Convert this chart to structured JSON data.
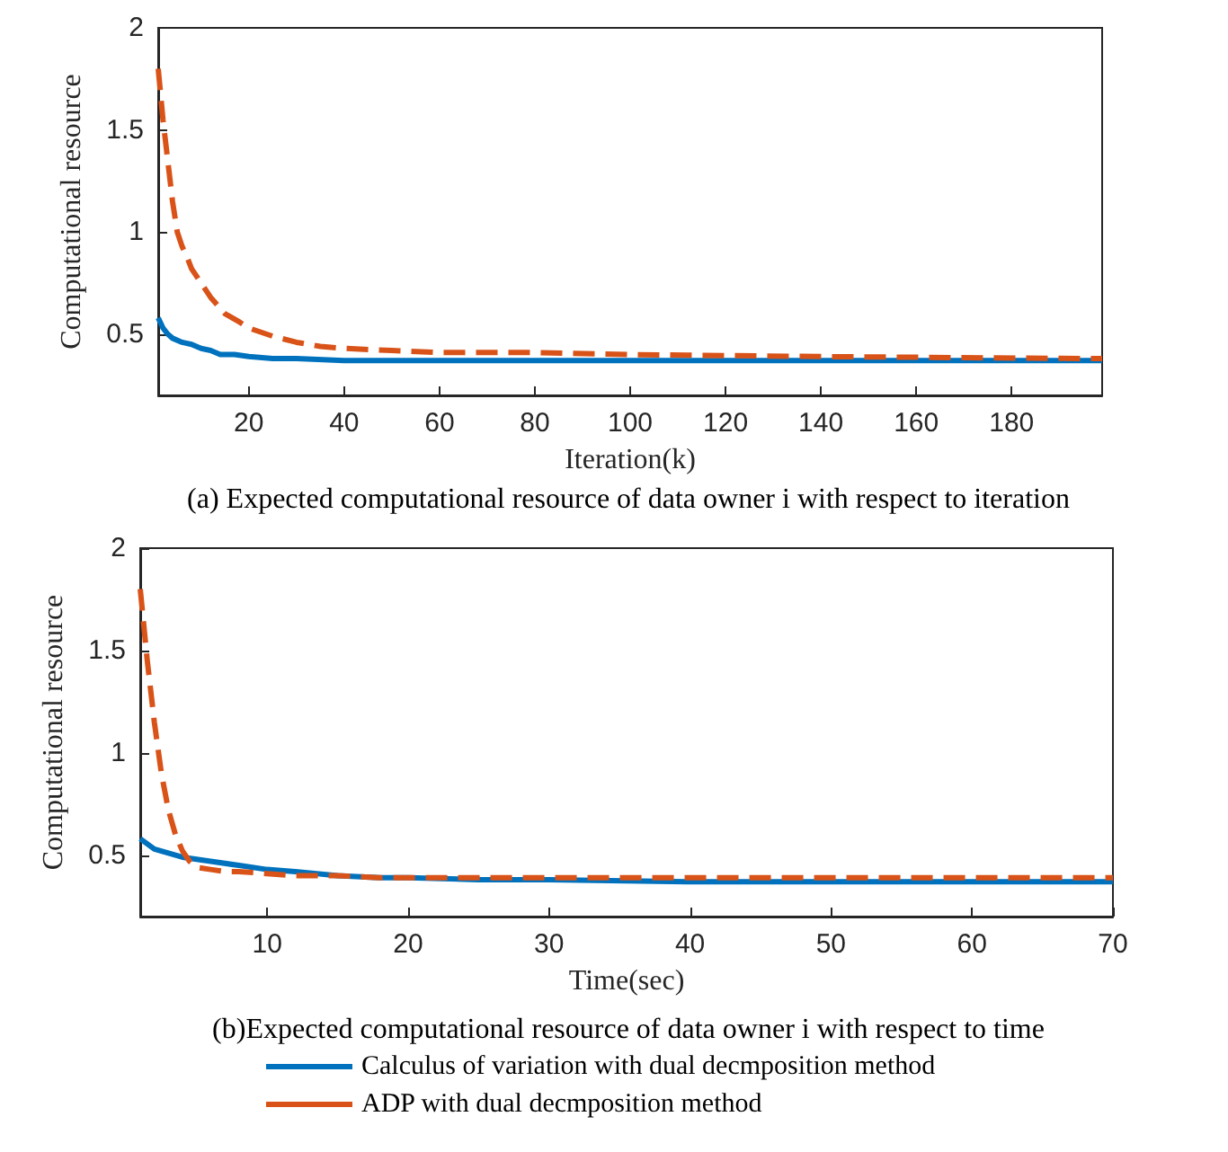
{
  "chart_data": [
    {
      "type": "line",
      "xlabel": "Iteration(k)",
      "ylabel": "Computational resource",
      "annotations": [
        "(a) Expected computational resource of data owner i with respect to iteration"
      ],
      "xlim": [
        1,
        199
      ],
      "xticks": [
        20,
        40,
        60,
        80,
        100,
        120,
        140,
        160,
        180
      ],
      "ylim": [
        0.2,
        2
      ],
      "yticks": [
        0.5,
        1,
        1.5,
        2
      ],
      "grid": false,
      "legend": false,
      "marker": "none",
      "series": [
        {
          "color": "#0072bd",
          "line_style": "solid",
          "x": [
            1,
            2,
            3,
            4,
            6,
            8,
            10,
            12,
            14,
            17,
            20,
            25,
            30,
            40,
            50,
            80,
            120,
            160,
            199
          ],
          "values": [
            0.58,
            0.53,
            0.5,
            0.48,
            0.46,
            0.45,
            0.43,
            0.42,
            0.4,
            0.4,
            0.39,
            0.38,
            0.38,
            0.37,
            0.37,
            0.37,
            0.37,
            0.37,
            0.37
          ]
        },
        {
          "color": "#d95319",
          "line_style": "dashed",
          "x": [
            1,
            2,
            3,
            4,
            5,
            6,
            7,
            8,
            10,
            12,
            15,
            18,
            20,
            25,
            30,
            35,
            40,
            50,
            60,
            80,
            100,
            140,
            199
          ],
          "values": [
            1.8,
            1.55,
            1.35,
            1.15,
            1.0,
            0.93,
            0.88,
            0.82,
            0.75,
            0.68,
            0.6,
            0.56,
            0.53,
            0.49,
            0.46,
            0.44,
            0.43,
            0.42,
            0.41,
            0.41,
            0.4,
            0.39,
            0.38
          ]
        }
      ]
    },
    {
      "type": "line",
      "xlabel": "Time(sec)",
      "ylabel": "Computational resource",
      "annotations": [
        "(b)Expected computational resource of data owner i with respect to time"
      ],
      "xlim": [
        1,
        70
      ],
      "xticks": [
        10,
        20,
        30,
        40,
        50,
        60,
        70
      ],
      "ylim": [
        0.2,
        2
      ],
      "yticks": [
        0.5,
        1,
        1.5,
        2
      ],
      "grid": false,
      "legend": "bottom",
      "marker": "none",
      "series": [
        {
          "name": "Calculus of variation with dual decmposition method",
          "color": "#0072bd",
          "line_style": "solid",
          "x": [
            1,
            2,
            3,
            4,
            5,
            6,
            8,
            10,
            12,
            15,
            18,
            20,
            25,
            30,
            40,
            50,
            60,
            70
          ],
          "values": [
            0.58,
            0.53,
            0.51,
            0.49,
            0.48,
            0.47,
            0.45,
            0.43,
            0.42,
            0.4,
            0.39,
            0.39,
            0.38,
            0.38,
            0.37,
            0.37,
            0.37,
            0.37
          ]
        },
        {
          "name": "ADP with dual decmposition method",
          "color": "#d95319",
          "line_style": "dashed",
          "x": [
            1,
            1.5,
            2,
            2.5,
            3,
            3.5,
            4,
            4.5,
            5,
            6,
            7,
            8,
            10,
            12,
            15,
            18,
            20,
            25,
            30,
            40,
            50,
            60,
            70
          ],
          "values": [
            1.8,
            1.45,
            1.15,
            0.9,
            0.72,
            0.6,
            0.52,
            0.47,
            0.44,
            0.43,
            0.42,
            0.42,
            0.41,
            0.4,
            0.4,
            0.39,
            0.39,
            0.39,
            0.39,
            0.39,
            0.39,
            0.39,
            0.39
          ]
        }
      ]
    }
  ]
}
